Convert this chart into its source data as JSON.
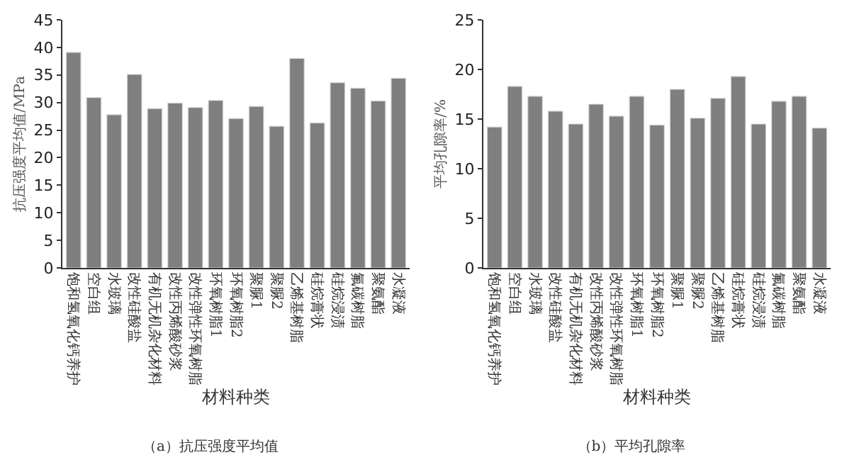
{
  "chart_data": [
    {
      "type": "bar",
      "title": "（a）抗压强度平均值",
      "xlabel": "材料种类",
      "ylabel": "抗压强度平均值/MPa",
      "categories": [
        "饱和氢氧化钙养护",
        "空白组",
        "水玻璃",
        "改性硅酸盐",
        "有机无机杂化材料",
        "改性丙烯酸砂浆",
        "改性弹性环氧树脂",
        "环氧树脂1",
        "环氧树脂2",
        "聚脲1",
        "聚脲2",
        "乙烯基树脂",
        "硅烷膏状",
        "硅烷浸渍",
        "氟碳树脂",
        "聚氨酯",
        "水凝液"
      ],
      "values": [
        39.1,
        30.9,
        27.8,
        35.1,
        28.9,
        29.9,
        29.1,
        30.4,
        27.1,
        29.3,
        25.7,
        38.0,
        26.3,
        33.6,
        32.6,
        30.3,
        34.4
      ],
      "color": "#7f7f7f",
      "ylim": [
        0,
        45
      ],
      "yticks": [
        0,
        5,
        10,
        15,
        20,
        25,
        30,
        35,
        40,
        45
      ],
      "grid": false
    },
    {
      "type": "bar",
      "title": "（b）平均孔隙率",
      "xlabel": "材料种类",
      "ylabel": "平均孔隙率/%",
      "categories": [
        "饱和氢氧化钙养护",
        "空白组",
        "水玻璃",
        "改性硅酸盐",
        "有机无机杂化材料",
        "改性丙烯酸砂浆",
        "改性弹性环氧树脂",
        "环氧树脂1",
        "环氧树脂2",
        "聚脲1",
        "聚脲2",
        "乙烯基树脂",
        "硅烷膏状",
        "硅烷浸渍",
        "氟碳树脂",
        "聚氨酯",
        "水凝液"
      ],
      "values": [
        14.2,
        18.3,
        17.3,
        15.8,
        14.5,
        16.5,
        15.3,
        17.3,
        14.4,
        18.0,
        15.1,
        17.1,
        19.3,
        14.5,
        16.8,
        17.3,
        14.1
      ],
      "color": "#7f7f7f",
      "ylim": [
        0,
        25
      ],
      "yticks": [
        0,
        5,
        10,
        15,
        20,
        25
      ],
      "grid": false
    }
  ]
}
